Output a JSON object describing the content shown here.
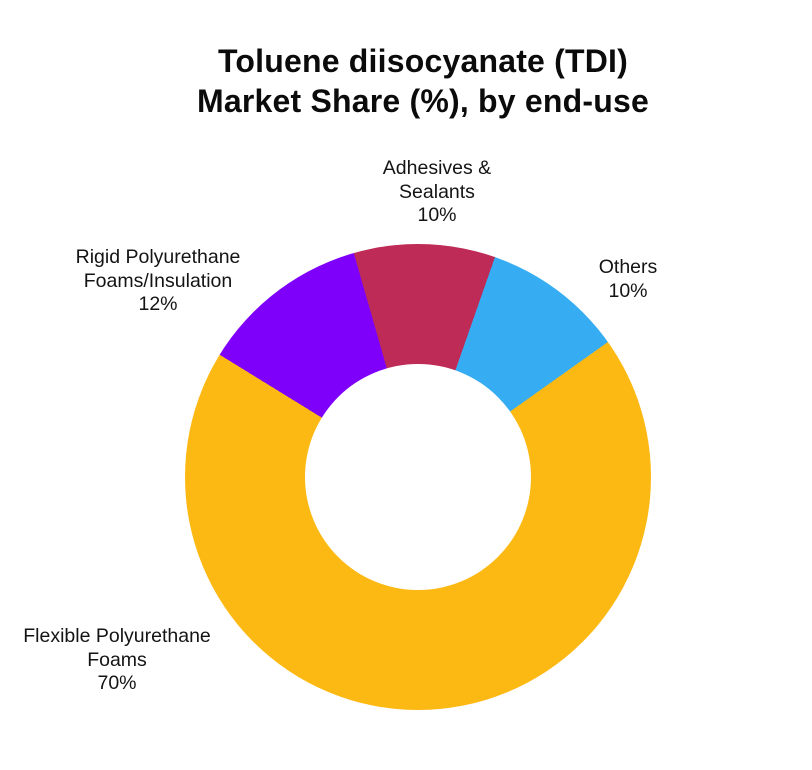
{
  "colors": {
    "background": "#FFFFFF",
    "title_text": "#0B0B0C",
    "label_text": "#141414",
    "donut_hole": "#FFFFFF"
  },
  "chart_data": {
    "type": "pie",
    "subtype": "donut",
    "title": "Toluene diisocyanate (TDI) Market Share (%), by end-use",
    "title_lines": [
      "Toluene diisocyanate (TDI)",
      "Market Share (%), by end-use"
    ],
    "unit": "%",
    "legend_position": "none",
    "labels_position": "outside-callouts",
    "start_angle_deg": 344,
    "clockwise": true,
    "inner_radius_ratio": 0.485,
    "segments": [
      {
        "id": "adhesives-sealants",
        "label": "Adhesives & Sealants",
        "value": 10,
        "value_label": "10%",
        "color": "#BE2B56",
        "callout_lines": [
          "Adhesives &",
          "Sealants",
          "10%"
        ]
      },
      {
        "id": "others",
        "label": "Others",
        "value": 10,
        "value_label": "10%",
        "color": "#36ADF3",
        "callout_lines": [
          "Others",
          "10%"
        ]
      },
      {
        "id": "flexible-polyurethane-foams",
        "label": "Flexible Polyurethane Foams",
        "value": 70,
        "value_label": "70%",
        "color": "#FDB913",
        "callout_lines": [
          "Flexible Polyurethane",
          "Foams",
          "70%"
        ]
      },
      {
        "id": "rigid-polyurethane-foams-insulation",
        "label": "Rigid Polyurethane Foams/Insulation",
        "value": 12,
        "value_label": "12%",
        "color": "#7E00FB",
        "callout_lines": [
          "Rigid Polyurethane",
          "Foams/Insulation",
          "12%"
        ]
      }
    ]
  }
}
